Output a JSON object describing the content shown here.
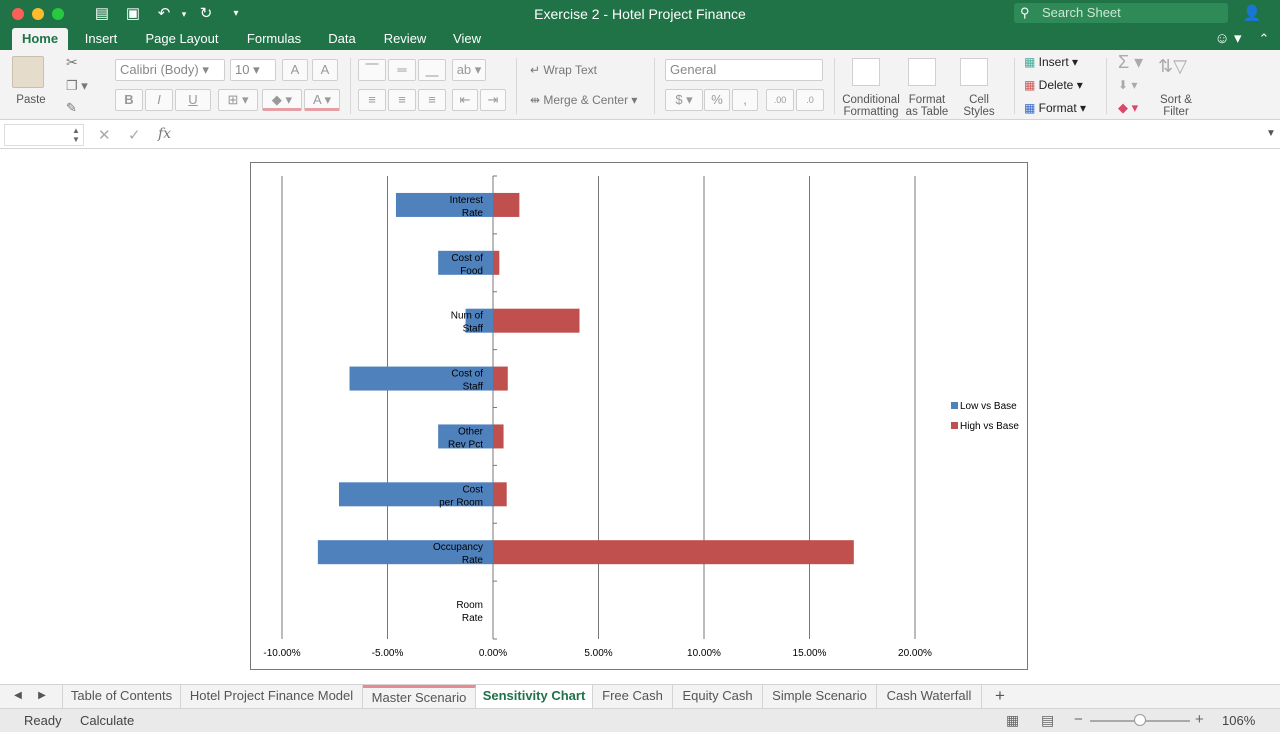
{
  "window": {
    "title": "Exercise 2 - Hotel Project Finance",
    "search_placeholder": "Search Sheet"
  },
  "ribbon_tabs": [
    "Home",
    "Insert",
    "Page Layout",
    "Formulas",
    "Data",
    "Review",
    "View"
  ],
  "ribbon": {
    "paste": "Paste",
    "font_name": "Calibri (Body)",
    "font_size": "10",
    "bold": "B",
    "italic": "I",
    "underline": "U",
    "wrap_text": "Wrap Text",
    "merge_center": "Merge & Center",
    "number_format": "General",
    "percent": "%",
    "conditional_formatting": [
      "Conditional",
      "Formatting"
    ],
    "format_as_table": [
      "Format",
      "as Table"
    ],
    "cell_styles": [
      "Cell",
      "Styles"
    ],
    "insert": "Insert",
    "delete": "Delete",
    "format": "Format",
    "sort_filter": [
      "Sort &",
      "Filter"
    ]
  },
  "formula_bar": {
    "fx": "fx",
    "name_box": "",
    "content": ""
  },
  "chart_data": {
    "type": "bar",
    "orientation": "horizontal",
    "categories": [
      [
        "Interest",
        "Rate"
      ],
      [
        "Cost of",
        "Food"
      ],
      [
        "Num of",
        "Staff"
      ],
      [
        "Cost of",
        "Staff"
      ],
      [
        "Other",
        "Rev Pct"
      ],
      [
        "Cost",
        "per Room"
      ],
      [
        "Occupancy",
        "Rate"
      ],
      [
        "Room",
        "Rate"
      ]
    ],
    "series": [
      {
        "name": "Low vs Base",
        "color": "#4f81bd",
        "values": [
          -4.6,
          -2.6,
          -1.3,
          -6.8,
          -2.6,
          -7.3,
          -8.3,
          0
        ]
      },
      {
        "name": "High vs Base",
        "color": "#c0504d",
        "values": [
          1.25,
          0.3,
          4.1,
          0.7,
          0.5,
          0.65,
          17.1,
          0
        ]
      }
    ],
    "xlim": [
      -10,
      20
    ],
    "xticks": [
      "-10.00%",
      "-5.00%",
      "0.00%",
      "5.00%",
      "10.00%",
      "15.00%",
      "20.00%"
    ],
    "grid": true,
    "legend_position": "right"
  },
  "sheet_tabs": [
    "Table of Contents",
    "Hotel Project Finance Model",
    "Master Scenario",
    "Sensitivity Chart",
    "Free Cash",
    "Equity Cash",
    "Simple Scenario",
    "Cash Waterfall"
  ],
  "active_sheet": "Sensitivity Chart",
  "status": {
    "ready": "Ready",
    "calculate": "Calculate",
    "zoom": "106%"
  }
}
